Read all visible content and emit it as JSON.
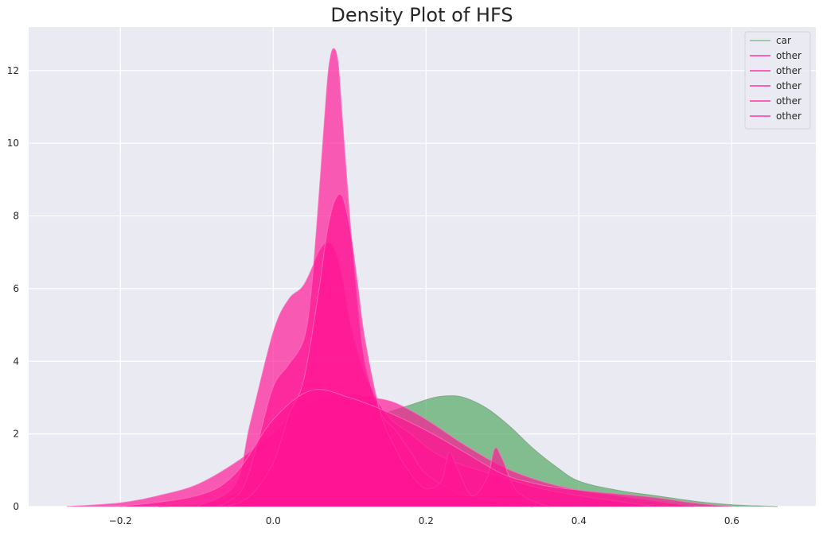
{
  "chart_data": {
    "type": "area",
    "title": "Density Plot of HFS",
    "xlabel": "",
    "ylabel": "",
    "xlim": [
      -0.32,
      0.71
    ],
    "ylim": [
      0,
      13.2
    ],
    "xticks": [
      -0.2,
      0.0,
      0.2,
      0.4,
      0.6
    ],
    "xtick_labels": [
      "−0.2",
      "0.0",
      "0.2",
      "0.4",
      "0.6"
    ],
    "yticks": [
      0,
      2,
      4,
      6,
      8,
      10,
      12
    ],
    "ytick_labels": [
      "0",
      "2",
      "4",
      "6",
      "8",
      "10",
      "12"
    ],
    "grid": true,
    "legend_position": "top-right",
    "series": [
      {
        "name": "car",
        "color": "#5aac6a",
        "x": [
          -0.15,
          -0.08,
          -0.03,
          0.0,
          0.03,
          0.06,
          0.09,
          0.12,
          0.15,
          0.18,
          0.21,
          0.23,
          0.25,
          0.28,
          0.31,
          0.34,
          0.37,
          0.4,
          0.45,
          0.5,
          0.55,
          0.6,
          0.66
        ],
        "y": [
          0.0,
          0.1,
          0.6,
          1.3,
          1.9,
          2.3,
          2.45,
          2.5,
          2.6,
          2.8,
          3.0,
          3.05,
          3.0,
          2.7,
          2.2,
          1.6,
          1.1,
          0.7,
          0.45,
          0.3,
          0.15,
          0.05,
          0.0
        ]
      },
      {
        "name": "other",
        "color": "#ff1493",
        "x": [
          -0.27,
          -0.2,
          -0.15,
          -0.1,
          -0.05,
          0.0,
          0.03,
          0.06,
          0.1,
          0.13,
          0.16,
          0.2,
          0.25,
          0.3,
          0.35,
          0.4,
          0.45,
          0.5,
          0.55
        ],
        "y": [
          0.0,
          0.1,
          0.3,
          0.6,
          1.2,
          2.0,
          2.6,
          2.95,
          3.1,
          3.0,
          2.85,
          2.4,
          1.7,
          1.1,
          0.7,
          0.45,
          0.3,
          0.15,
          0.0
        ]
      },
      {
        "name": "other",
        "color": "#ff1493",
        "x": [
          -0.1,
          -0.05,
          -0.03,
          0.0,
          0.02,
          0.04,
          0.06,
          0.07,
          0.08,
          0.09,
          0.1,
          0.12,
          0.15,
          0.18,
          0.21,
          0.24,
          0.27,
          0.3,
          0.35,
          0.4,
          0.45,
          0.5
        ],
        "y": [
          0.0,
          0.6,
          2.3,
          4.8,
          5.7,
          6.1,
          7.0,
          7.25,
          7.1,
          6.3,
          5.1,
          3.6,
          2.5,
          2.0,
          1.5,
          1.2,
          1.0,
          0.8,
          0.5,
          0.3,
          0.15,
          0.0
        ]
      },
      {
        "name": "other",
        "color": "#ff1493",
        "x": [
          -0.07,
          -0.04,
          -0.02,
          0.0,
          0.02,
          0.04,
          0.05,
          0.06,
          0.07,
          0.075,
          0.08,
          0.085,
          0.09,
          0.1,
          0.11,
          0.12,
          0.14,
          0.16,
          0.18,
          0.2,
          0.24,
          0.28,
          0.3,
          0.34
        ],
        "y": [
          0.0,
          0.5,
          1.8,
          3.3,
          3.9,
          4.6,
          6.0,
          8.6,
          11.5,
          12.4,
          12.6,
          12.2,
          10.8,
          8.0,
          5.6,
          3.9,
          2.6,
          2.1,
          1.5,
          0.9,
          0.4,
          0.2,
          0.1,
          0.0
        ]
      },
      {
        "name": "other",
        "color": "#ff1493",
        "x": [
          -0.06,
          -0.03,
          0.0,
          0.02,
          0.04,
          0.06,
          0.07,
          0.08,
          0.09,
          0.1,
          0.11,
          0.12,
          0.14,
          0.16,
          0.18,
          0.2,
          0.22,
          0.23,
          0.24,
          0.26,
          0.28,
          0.29,
          0.3,
          0.32,
          0.36
        ],
        "y": [
          0.0,
          0.3,
          1.2,
          2.5,
          3.5,
          6.0,
          7.5,
          8.4,
          8.55,
          7.7,
          6.2,
          4.6,
          2.6,
          1.6,
          0.9,
          0.5,
          0.7,
          1.5,
          1.1,
          0.3,
          0.8,
          1.6,
          1.3,
          0.4,
          0.0
        ]
      },
      {
        "name": "other",
        "color": "#ff1493",
        "x": [
          -0.2,
          -0.1,
          -0.05,
          0.0,
          0.05,
          0.1,
          0.15,
          0.2,
          0.25,
          0.3,
          0.35,
          0.4,
          0.45,
          0.5,
          0.55,
          0.6
        ],
        "y": [
          0.0,
          0.3,
          0.9,
          2.4,
          3.2,
          3.0,
          2.6,
          2.1,
          1.5,
          0.9,
          0.6,
          0.45,
          0.35,
          0.25,
          0.1,
          0.0
        ]
      }
    ]
  }
}
